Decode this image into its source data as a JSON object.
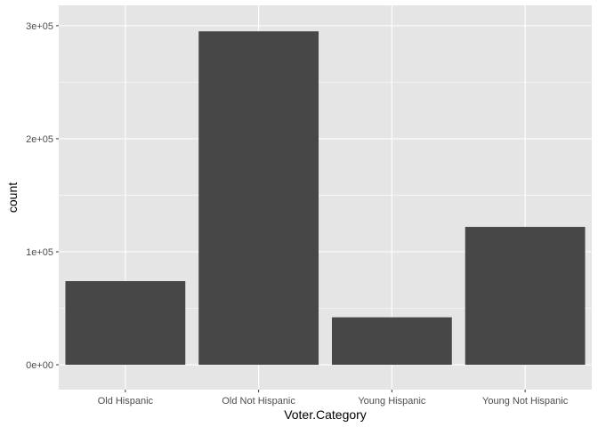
{
  "chart_data": {
    "type": "bar",
    "title": "",
    "xlabel": "Voter.Category",
    "ylabel": "count",
    "categories": [
      "Old Hispanic",
      "Old Not Hispanic",
      "Young Hispanic",
      "Young Not Hispanic"
    ],
    "values": [
      74000,
      295000,
      42000,
      122000
    ],
    "ylim": [
      -22000,
      318000
    ],
    "y_ticks": [
      0,
      100000,
      200000,
      300000
    ],
    "y_tick_labels": [
      "0e+00",
      "1e+05",
      "2e+05",
      "3e+05"
    ],
    "grid": true,
    "bar_color": "#474747",
    "panel_color": "#e5e5e5",
    "gridline_color": "#ffffff"
  }
}
